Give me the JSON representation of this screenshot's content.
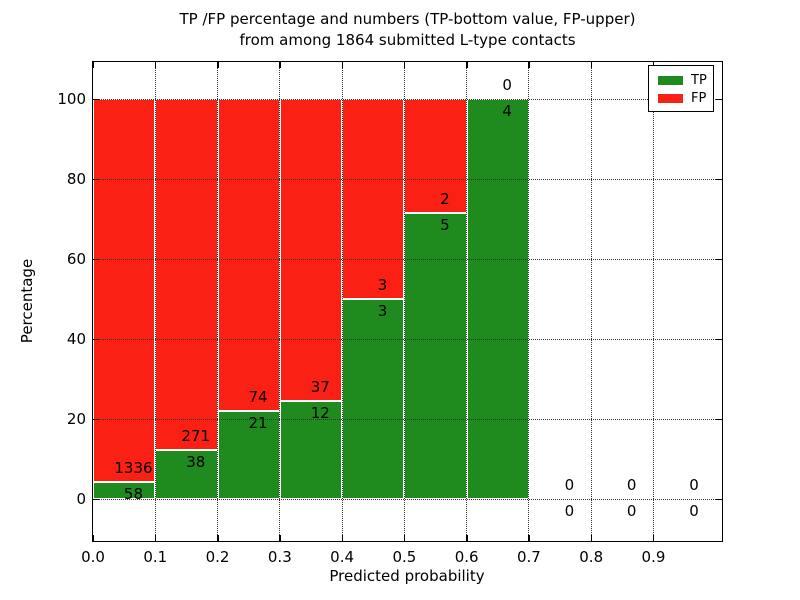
{
  "figure": {
    "title_line1": "TP /FP percentage and numbers (TP-bottom value, FP-upper)",
    "title_line2": "from among 1864 submitted L-type contacts",
    "xlabel": "Predicted probability",
    "ylabel": "Percentage"
  },
  "legend": {
    "items": [
      {
        "label": "TP",
        "color": "#1f8b1f"
      },
      {
        "label": "FP",
        "color": "#fa2014"
      }
    ]
  },
  "chart_data": {
    "type": "bar",
    "stacked": true,
    "title": "TP /FP percentage and numbers (TP-bottom value, FP-upper) from among 1864 submitted L-type contacts",
    "xlabel": "Predicted probability",
    "ylabel": "Percentage",
    "total_contacts": 1864,
    "bin_width": 0.1,
    "bin_starts": [
      0.0,
      0.1,
      0.2,
      0.3,
      0.4,
      0.5,
      0.6,
      0.7,
      0.8,
      0.9
    ],
    "xtick_labels": [
      "0.0",
      "0.1",
      "0.2",
      "0.3",
      "0.4",
      "0.5",
      "0.6",
      "0.7",
      "0.8",
      "0.9"
    ],
    "yticks": [
      0,
      20,
      40,
      60,
      80,
      100
    ],
    "xlim": [
      0,
      1.01
    ],
    "ylim": [
      -10.5,
      109.3
    ],
    "grid": "dotted",
    "legend_position": "upper right",
    "annotation_note": "TP count printed below segment boundary, FP count above",
    "series": [
      {
        "name": "TP",
        "color": "#1f8b1f",
        "counts": [
          58,
          38,
          21,
          12,
          3,
          5,
          4,
          0,
          0,
          0
        ],
        "percent": [
          4.16,
          12.3,
          22.11,
          24.49,
          50.0,
          71.43,
          100.0,
          0,
          0,
          0
        ]
      },
      {
        "name": "FP",
        "color": "#fa2014",
        "counts": [
          1336,
          271,
          74,
          37,
          3,
          2,
          0,
          0,
          0,
          0
        ],
        "percent": [
          95.84,
          87.7,
          77.89,
          75.51,
          50.0,
          28.57,
          0,
          0,
          0,
          0
        ]
      }
    ]
  }
}
